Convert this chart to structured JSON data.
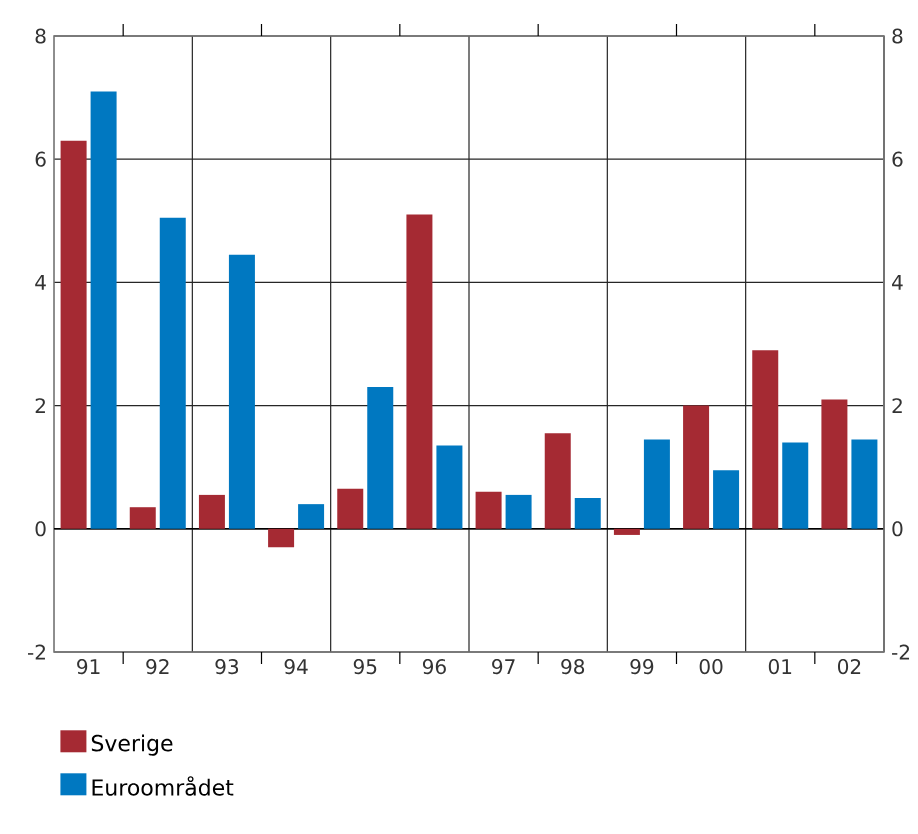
{
  "chart_data": {
    "type": "bar",
    "categories": [
      "91",
      "92",
      "93",
      "94",
      "95",
      "96",
      "97",
      "98",
      "99",
      "00",
      "01",
      "02"
    ],
    "series": [
      {
        "name": "Sverige",
        "color": "#a52a33",
        "values": [
          6.3,
          0.35,
          0.55,
          -0.3,
          0.65,
          5.1,
          0.6,
          1.55,
          -0.1,
          2.0,
          2.9,
          2.1
        ]
      },
      {
        "name": "Euroområdet",
        "color": "#0078c1",
        "values": [
          7.1,
          5.05,
          4.45,
          0.4,
          2.3,
          1.35,
          0.55,
          0.5,
          1.45,
          0.95,
          1.4,
          1.45
        ]
      }
    ],
    "ylim": [
      -2,
      8
    ],
    "yticks": [
      -2,
      0,
      2,
      4,
      6,
      8
    ],
    "y2lim": [
      -2,
      8
    ],
    "y2ticks": [
      -2,
      0,
      2,
      4,
      6,
      8
    ],
    "grid": true,
    "legend": "bottom left"
  }
}
